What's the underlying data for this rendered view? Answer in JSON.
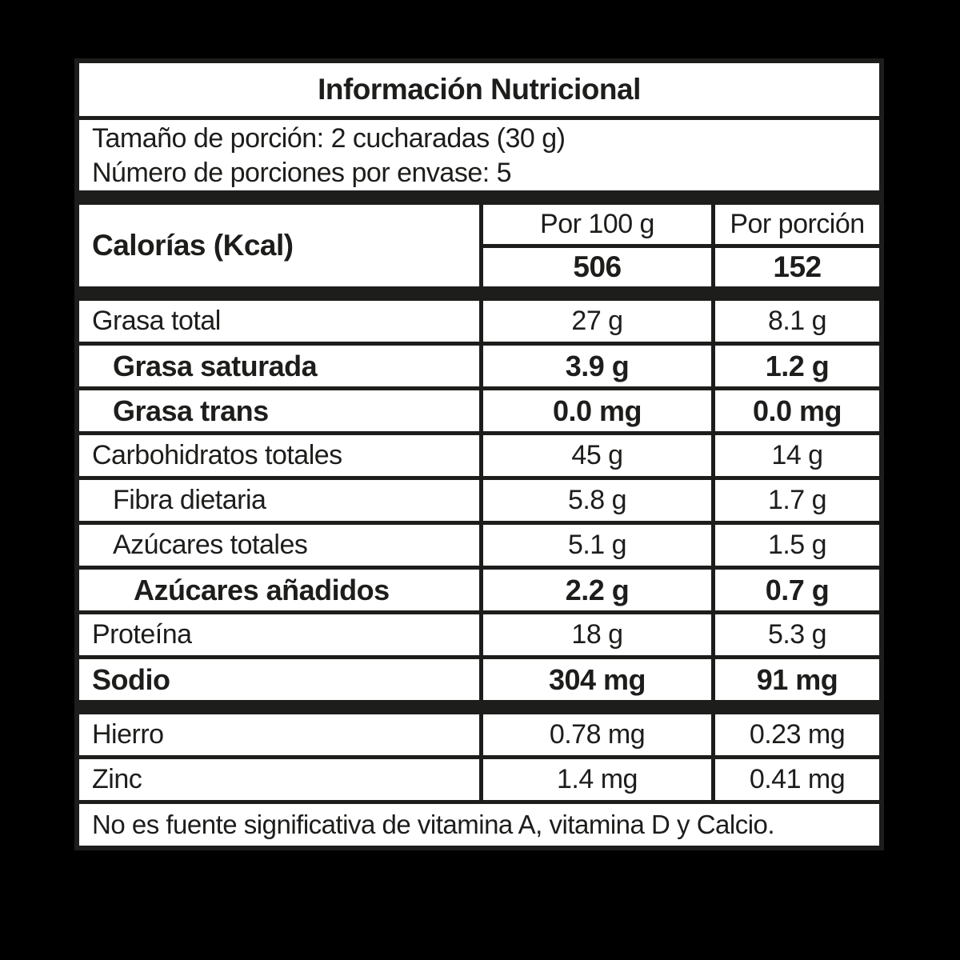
{
  "page": {
    "background": "#000000",
    "paper": "#ffffff",
    "ink": "#1d1d1b"
  },
  "label": {
    "title": "Información Nutricional",
    "serving": {
      "size_line": "Tamaño de porción: 2 cucharadas (30 g)",
      "count_line": "Número de porciones por envase: 5"
    },
    "columns": {
      "per100_header": "Por 100 g",
      "portion_header": "Por porción"
    },
    "calories": {
      "name": "Calorías (Kcal)",
      "per100": "506",
      "portion": "152"
    },
    "rows": [
      {
        "name": "Grasa total",
        "per100": "27 g",
        "portion": "8.1 g"
      },
      {
        "name": "Grasa saturada",
        "per100": "3.9 g",
        "portion": "1.2 g"
      },
      {
        "name": "Grasa trans",
        "per100": "0.0 mg",
        "portion": "0.0 mg"
      },
      {
        "name": "Carbohidratos totales",
        "per100": "45 g",
        "portion": "14 g"
      },
      {
        "name": "Fibra dietaria",
        "per100": "5.8 g",
        "portion": "1.7 g"
      },
      {
        "name": "Azúcares totales",
        "per100": "5.1 g",
        "portion": "1.5 g"
      },
      {
        "name": "Azúcares añadidos",
        "per100": "2.2 g",
        "portion": "0.7 g"
      },
      {
        "name": "Proteína",
        "per100": "18 g",
        "portion": "5.3 g"
      },
      {
        "name": "Sodio",
        "per100": "304 mg",
        "portion": "91 mg"
      }
    ],
    "minerals": [
      {
        "name": "Hierro",
        "per100": "0.78 mg",
        "portion": "0.23 mg"
      },
      {
        "name": "Zinc",
        "per100": "1.4 mg",
        "portion": "0.41 mg"
      }
    ],
    "footnote": "No es fuente significativa de vitamina A, vitamina D y Calcio."
  }
}
